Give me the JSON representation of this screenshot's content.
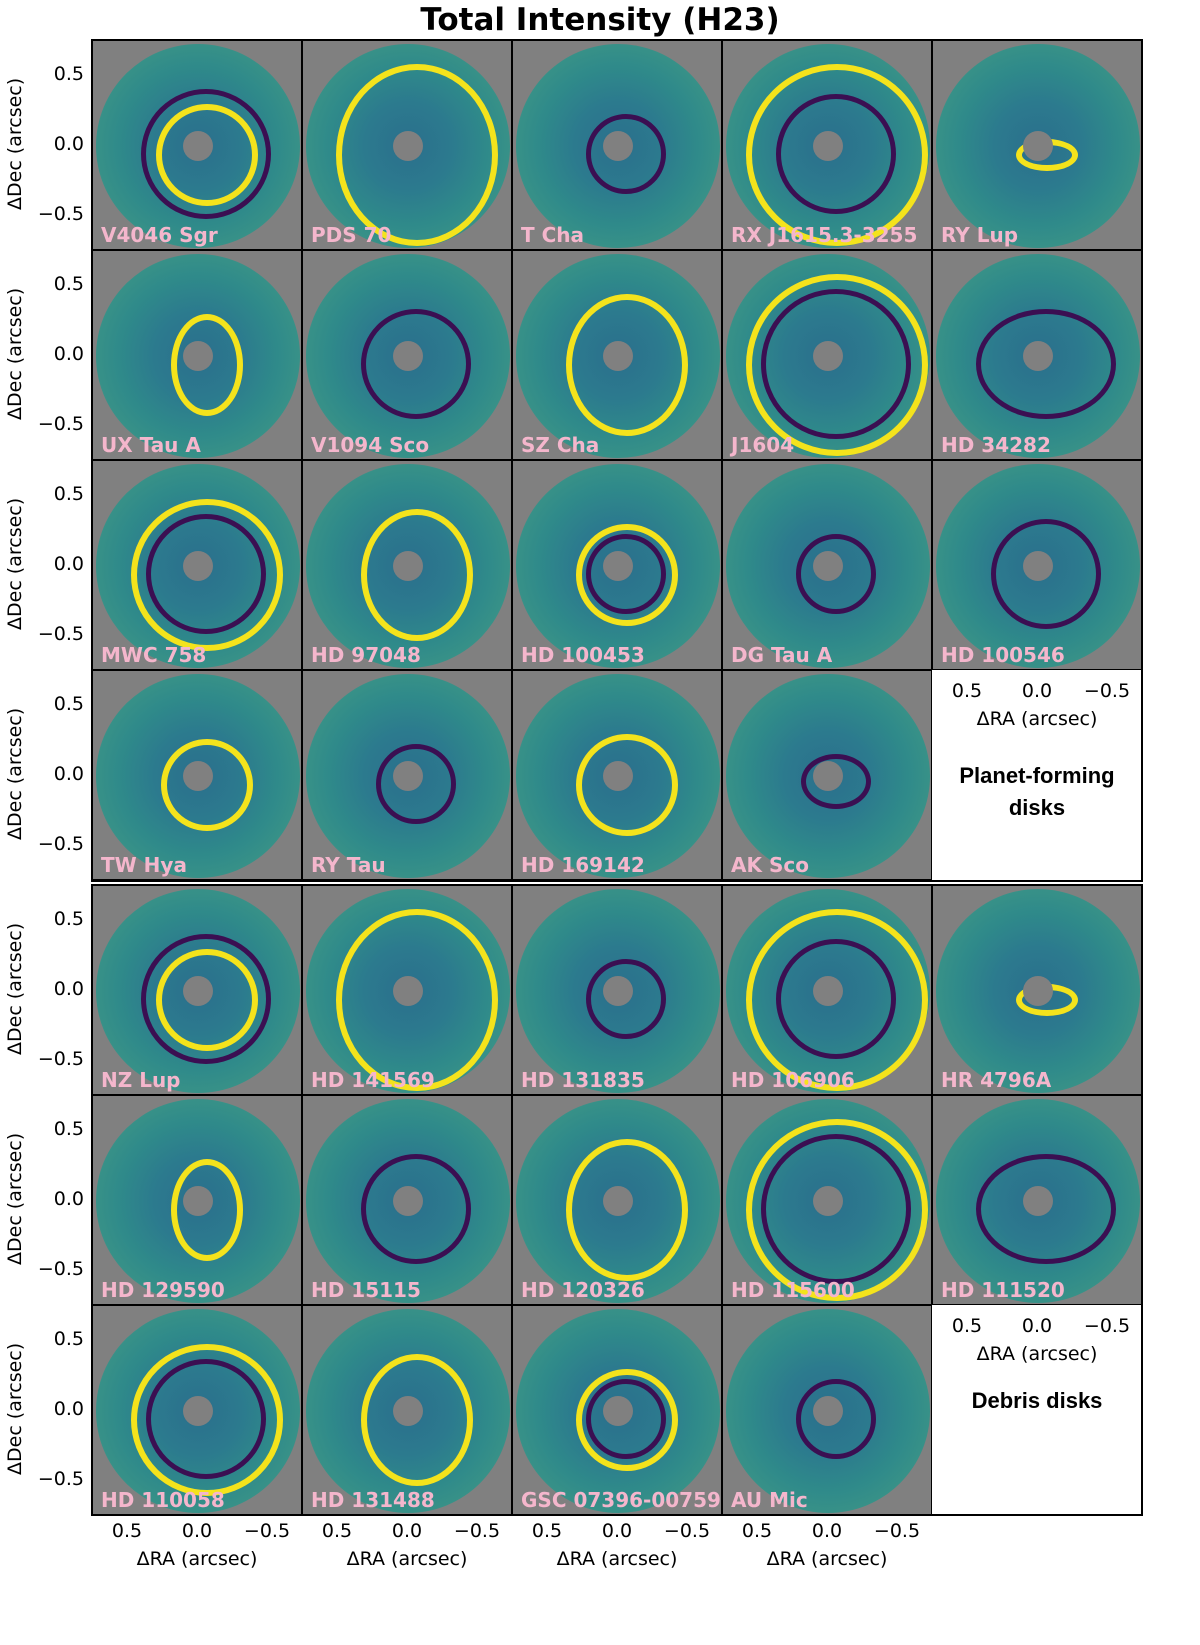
{
  "title": "Total Intensity (H23)",
  "axis": {
    "ylabel": "ΔDec (arcsec)",
    "xlabel": "ΔRA (arcsec)",
    "yticks": [
      "0.5",
      "0.0",
      "−0.5"
    ],
    "xticks": [
      "0.5",
      "0.0",
      "−0.5"
    ]
  },
  "groups": [
    {
      "label": "Planet-forming disks",
      "panels": [
        "V4046 Sgr",
        "PDS 70",
        "T Cha",
        "RX J1615.3-3255",
        "RY Lup",
        "UX Tau A",
        "V1094 Sco",
        "SZ Cha",
        "J1604",
        "HD 34282",
        "MWC 758",
        "HD 97048",
        "HD 100453",
        "DG Tau A",
        "HD 100546",
        "TW Hya",
        "RY Tau",
        "HD 169142",
        "AK Sco"
      ]
    },
    {
      "label": "Debris disks",
      "panels": [
        "NZ Lup",
        "HD 141569",
        "HD 131835",
        "HD 106906",
        "HR 4796A",
        "HD 129590",
        "HD 15115",
        "HD 120326",
        "HD 115600",
        "HD 111520",
        "HD 110058",
        "HD 131488",
        "GSC 07396-00759",
        "AU Mic"
      ]
    }
  ],
  "colors": {
    "background_gray": "#808080",
    "disk_teal": "#2c7a8e",
    "highlight_yellow": "#f4e31c",
    "shadow_purple": "#3b0f52",
    "label_pink": "#f4b6cc"
  }
}
